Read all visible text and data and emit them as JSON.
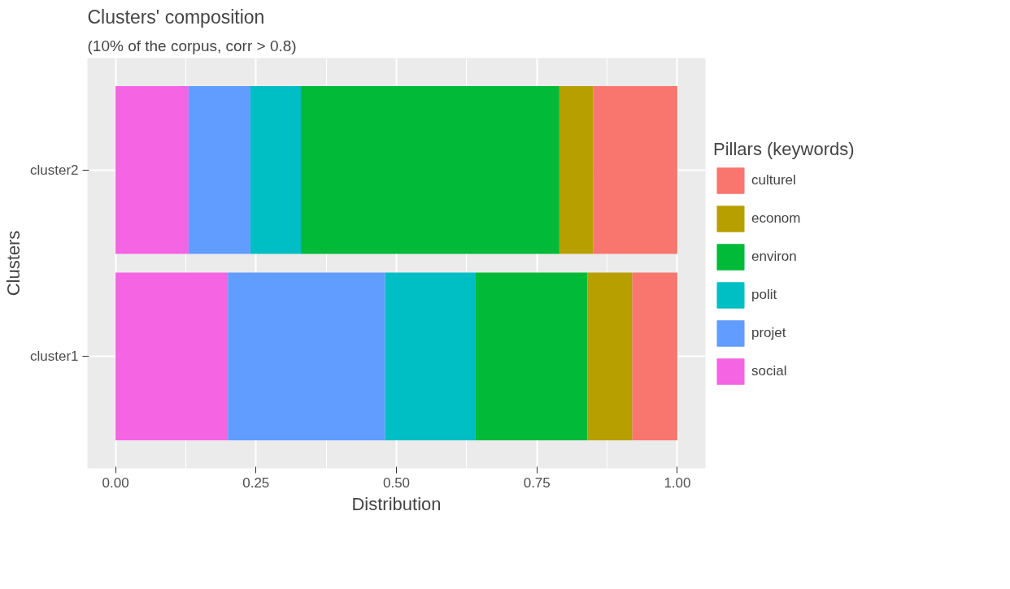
{
  "chart_data": {
    "type": "bar",
    "orientation": "horizontal",
    "stacked": true,
    "title": "Clusters' composition",
    "subtitle": "(10% of the corpus, corr > 0.8)",
    "xlabel": "Distribution",
    "ylabel": "Clusters",
    "legend_title": "Pillars (keywords)",
    "legend": "right",
    "grid": true,
    "categories": [
      "cluster2",
      "cluster1"
    ],
    "xlim": [
      -0.05,
      1.05
    ],
    "xticks": [
      {
        "value": 0,
        "label": "0.00"
      },
      {
        "value": 0.25,
        "label": "0.25"
      },
      {
        "value": 0.5,
        "label": "0.50"
      },
      {
        "value": 0.75,
        "label": "0.75"
      },
      {
        "value": 1,
        "label": "1.00"
      }
    ],
    "series": [
      {
        "name": "social",
        "color": "#f564e3",
        "values": [
          0.13,
          0.2
        ]
      },
      {
        "name": "projet",
        "color": "#619cff",
        "values": [
          0.11,
          0.28
        ]
      },
      {
        "name": "polit",
        "color": "#00bfc4",
        "values": [
          0.09,
          0.16
        ]
      },
      {
        "name": "environ",
        "color": "#00ba38",
        "values": [
          0.46,
          0.2
        ]
      },
      {
        "name": "econom",
        "color": "#b79f00",
        "values": [
          0.06,
          0.08
        ]
      },
      {
        "name": "culturel",
        "color": "#f8766d",
        "values": [
          0.15,
          0.08
        ]
      }
    ]
  }
}
